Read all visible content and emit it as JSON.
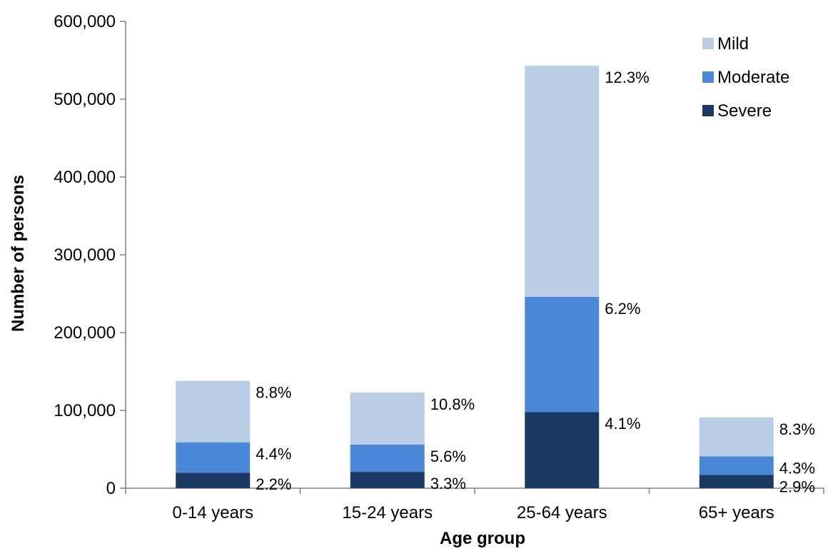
{
  "chart_data": {
    "type": "bar",
    "stacked": true,
    "categories": [
      "0-14 years",
      "15-24 years",
      "25-64 years",
      "65+ years"
    ],
    "series": [
      {
        "name": "Severe",
        "color": "#1b3a63",
        "values": [
          20000,
          21000,
          98000,
          17000
        ],
        "labels": [
          "2.2%",
          "3.3%",
          "4.1%",
          "2.9%"
        ]
      },
      {
        "name": "Moderate",
        "color": "#4a89d8",
        "values": [
          39000,
          35000,
          148000,
          24000
        ],
        "labels": [
          "4.4%",
          "5.6%",
          "6.2%",
          "4.3%"
        ]
      },
      {
        "name": "Mild",
        "color": "#b9cde5",
        "values": [
          79000,
          67000,
          297000,
          50000
        ],
        "labels": [
          "8.8%",
          "10.8%",
          "12.3%",
          "8.3%"
        ]
      }
    ],
    "legend_order": [
      "Mild",
      "Moderate",
      "Severe"
    ],
    "legend_position": "top-right",
    "xlabel": "Age group",
    "ylabel": "Number of persons",
    "ylim": [
      0,
      600000
    ],
    "yticks": [
      0,
      100000,
      200000,
      300000,
      400000,
      500000,
      600000
    ],
    "ytick_labels": [
      "0",
      "100,000",
      "200,000",
      "300,000",
      "400,000",
      "500,000",
      "600,000"
    ],
    "grid": false
  }
}
